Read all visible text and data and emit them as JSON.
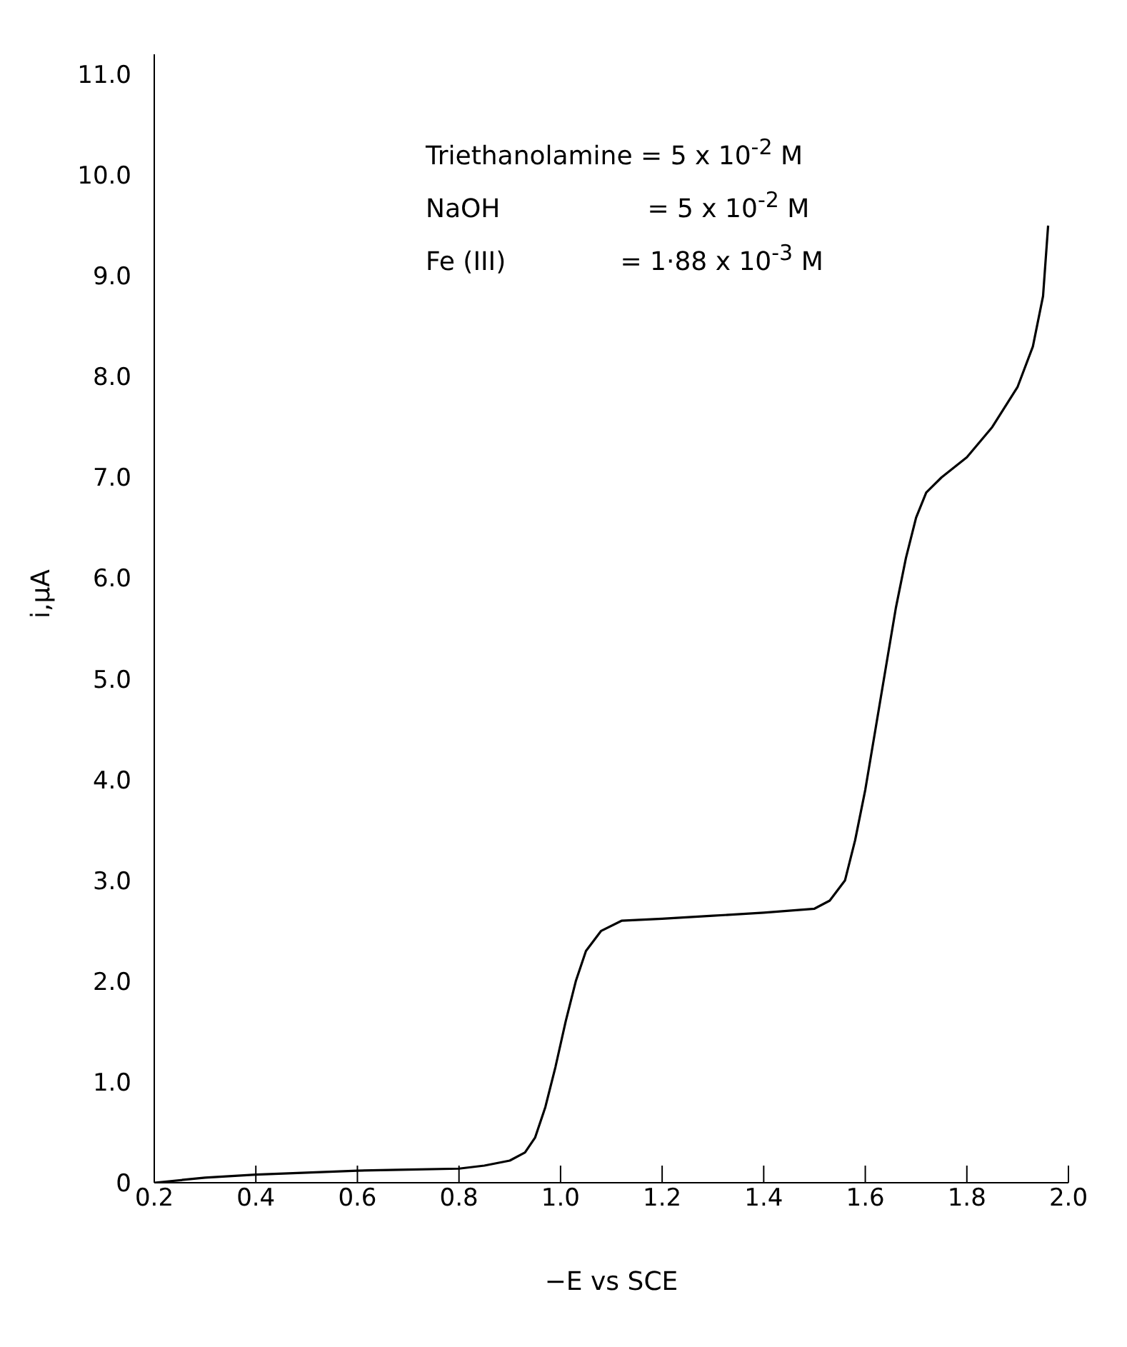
{
  "chart_data": {
    "type": "line",
    "xlabel": "−E vs SCE",
    "ylabel": "i,μA",
    "annotations": [
      "Triethanolamine = 5 x 10$^{-2}$ M",
      "NaOH                  = 5 x 10$^{-2}$ M",
      "Fe (III)              = 1·88 x 10$^{-3}$ M"
    ],
    "x": [
      0.2,
      0.3,
      0.4,
      0.5,
      0.6,
      0.7,
      0.8,
      0.85,
      0.9,
      0.93,
      0.95,
      0.97,
      0.99,
      1.01,
      1.03,
      1.05,
      1.08,
      1.12,
      1.2,
      1.3,
      1.4,
      1.5,
      1.53,
      1.56,
      1.58,
      1.6,
      1.62,
      1.64,
      1.66,
      1.68,
      1.7,
      1.72,
      1.75,
      1.8,
      1.85,
      1.9,
      1.93,
      1.95,
      1.96
    ],
    "series": [
      {
        "color": "#000000",
        "values": [
          0,
          0.05,
          0.08,
          0.1,
          0.12,
          0.13,
          0.14,
          0.17,
          0.22,
          0.3,
          0.45,
          0.75,
          1.15,
          1.6,
          2.0,
          2.3,
          2.5,
          2.6,
          2.62,
          2.65,
          2.68,
          2.72,
          2.8,
          3.0,
          3.4,
          3.9,
          4.5,
          5.1,
          5.7,
          6.2,
          6.6,
          6.85,
          7.0,
          7.2,
          7.5,
          7.9,
          8.3,
          8.8,
          9.5
        ]
      }
    ],
    "xlim": [
      0.2,
      2.0
    ],
    "xticks": [
      0.2,
      0.4,
      0.6,
      0.8,
      {
        "value": 1,
        "label": "1.0"
      },
      1.2,
      1.4,
      1.6,
      1.8,
      {
        "value": 2,
        "label": "2.0"
      }
    ],
    "ylim": [
      0,
      11.2
    ],
    "yticks": [
      0,
      {
        "value": 1,
        "label": "1.0"
      },
      {
        "value": 2,
        "label": "2.0"
      },
      {
        "value": 3,
        "label": "3.0"
      },
      {
        "value": 4,
        "label": "4.0"
      },
      {
        "value": 5,
        "label": "5.0"
      },
      {
        "value": 6,
        "label": "6.0"
      },
      {
        "value": 7,
        "label": "7.0"
      },
      {
        "value": 8,
        "label": "8.0"
      },
      {
        "value": 9,
        "label": "9.0"
      },
      {
        "value": 10,
        "label": "10.0"
      },
      {
        "value": 11,
        "label": "11.0"
      }
    ],
    "grid": false,
    "legend": false,
    "marker": "none",
    "line_style": "solid"
  }
}
